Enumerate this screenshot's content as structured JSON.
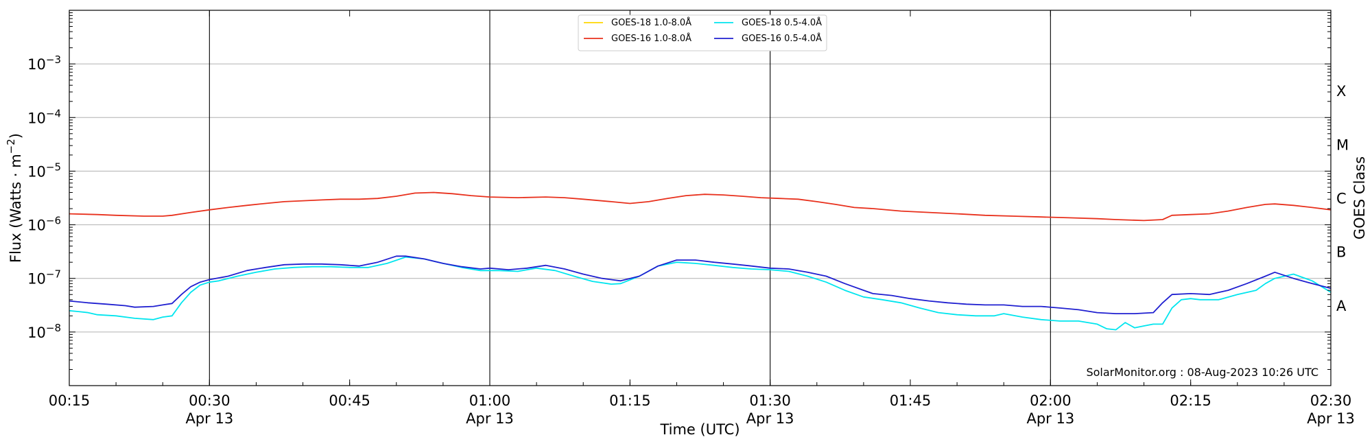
{
  "chart_data": {
    "type": "line",
    "xlabel": "Time (UTC)",
    "ylabel": "Flux (Watts · m⁻²)",
    "y2label": "GOES Class",
    "yscale": "log",
    "ylim": [
      1e-09,
      0.01
    ],
    "xlim": [
      "00:15",
      "02:30"
    ],
    "x_ticks": [
      {
        "t": "00:15",
        "date": ""
      },
      {
        "t": "00:30",
        "date": "Apr 13"
      },
      {
        "t": "00:45",
        "date": ""
      },
      {
        "t": "01:00",
        "date": "Apr 13"
      },
      {
        "t": "01:15",
        "date": ""
      },
      {
        "t": "01:30",
        "date": "Apr 13"
      },
      {
        "t": "01:45",
        "date": ""
      },
      {
        "t": "02:00",
        "date": "Apr 13"
      },
      {
        "t": "02:15",
        "date": ""
      },
      {
        "t": "02:30",
        "date": "Apr 13"
      }
    ],
    "y_ticks": [
      {
        "value": 1e-08,
        "mant": "10",
        "exp": "−8"
      },
      {
        "value": 1e-07,
        "mant": "10",
        "exp": "−7"
      },
      {
        "value": 1e-06,
        "mant": "10",
        "exp": "−6"
      },
      {
        "value": 1e-05,
        "mant": "10",
        "exp": "−5"
      },
      {
        "value": 0.0001,
        "mant": "10",
        "exp": "−4"
      },
      {
        "value": 0.001,
        "mant": "10",
        "exp": "−3"
      }
    ],
    "goes_classes": [
      {
        "label": "A",
        "value": 1e-08
      },
      {
        "label": "B",
        "value": 1e-07
      },
      {
        "label": "C",
        "value": 1e-06
      },
      {
        "label": "M",
        "value": 1e-05
      },
      {
        "label": "X",
        "value": 0.0001
      }
    ],
    "grid": "horizontal at decades, vertical at half-hours",
    "legend_position": "top-center",
    "series": [
      {
        "name": "GOES-18 1.0-8.0Å",
        "color": "#ffd700",
        "t": [],
        "values": []
      },
      {
        "name": "GOES-16 1.0-8.0Å",
        "color": "#e8301c",
        "t": [
          "00:15",
          "00:18",
          "00:20",
          "00:23",
          "00:25",
          "00:26",
          "00:28",
          "00:30",
          "00:32",
          "00:34",
          "00:36",
          "00:38",
          "00:40",
          "00:42",
          "00:44",
          "00:46",
          "00:48",
          "00:50",
          "00:52",
          "00:54",
          "00:56",
          "00:58",
          "01:00",
          "01:03",
          "01:06",
          "01:08",
          "01:10",
          "01:13",
          "01:15",
          "01:17",
          "01:19",
          "01:21",
          "01:23",
          "01:25",
          "01:27",
          "01:29",
          "01:31",
          "01:33",
          "01:35",
          "01:37",
          "01:39",
          "01:41",
          "01:44",
          "01:47",
          "01:50",
          "01:53",
          "01:56",
          "01:59",
          "02:02",
          "02:05",
          "02:07",
          "02:10",
          "02:12",
          "02:13",
          "02:15",
          "02:17",
          "02:19",
          "02:21",
          "02:23",
          "02:24",
          "02:26",
          "02:28",
          "02:30"
        ],
        "values": [
          1.6e-06,
          1.55e-06,
          1.5e-06,
          1.45e-06,
          1.45e-06,
          1.5e-06,
          1.7e-06,
          1.9e-06,
          2.1e-06,
          2.3e-06,
          2.5e-06,
          2.7e-06,
          2.8e-06,
          2.9e-06,
          3e-06,
          3e-06,
          3.1e-06,
          3.4e-06,
          3.9e-06,
          4e-06,
          3.8e-06,
          3.5e-06,
          3.3e-06,
          3.2e-06,
          3.3e-06,
          3.2e-06,
          3e-06,
          2.7e-06,
          2.5e-06,
          2.7e-06,
          3.1e-06,
          3.5e-06,
          3.7e-06,
          3.6e-06,
          3.4e-06,
          3.2e-06,
          3.1e-06,
          3e-06,
          2.7e-06,
          2.4e-06,
          2.1e-06,
          2e-06,
          1.8e-06,
          1.7e-06,
          1.6e-06,
          1.5e-06,
          1.45e-06,
          1.4e-06,
          1.35e-06,
          1.3e-06,
          1.25e-06,
          1.2e-06,
          1.25e-06,
          1.5e-06,
          1.55e-06,
          1.6e-06,
          1.8e-06,
          2.1e-06,
          2.4e-06,
          2.45e-06,
          2.3e-06,
          2.1e-06,
          1.9e-06
        ]
      },
      {
        "name": "GOES-18 0.5-4.0Å",
        "color": "#00e5ee",
        "t": [
          "00:15",
          "00:16",
          "00:17",
          "00:18",
          "00:20",
          "00:22",
          "00:24",
          "00:25",
          "00:26",
          "00:27",
          "00:28",
          "00:29",
          "00:30",
          "00:31",
          "00:33",
          "00:35",
          "00:37",
          "00:39",
          "00:41",
          "00:43",
          "00:45",
          "00:47",
          "00:49",
          "00:51",
          "00:53",
          "00:55",
          "00:57",
          "00:59",
          "01:01",
          "01:03",
          "01:05",
          "01:07",
          "01:09",
          "01:11",
          "01:13",
          "01:14",
          "01:16",
          "01:18",
          "01:20",
          "01:22",
          "01:24",
          "01:26",
          "01:28",
          "01:30",
          "01:32",
          "01:34",
          "01:36",
          "01:38",
          "01:40",
          "01:42",
          "01:44",
          "01:46",
          "01:48",
          "01:50",
          "01:52",
          "01:54",
          "01:55",
          "01:57",
          "01:59",
          "02:01",
          "02:03",
          "02:04",
          "02:05",
          "02:06",
          "02:07",
          "02:08",
          "02:09",
          "02:10",
          "02:11",
          "02:12",
          "02:13",
          "02:14",
          "02:15",
          "02:16",
          "02:18",
          "02:20",
          "02:22",
          "02:23",
          "02:24",
          "02:26",
          "02:28",
          "02:30"
        ],
        "values": [
          2.5e-08,
          2.4e-08,
          2.3e-08,
          2.1e-08,
          2e-08,
          1.8e-08,
          1.7e-08,
          1.9e-08,
          2e-08,
          3.5e-08,
          5.5e-08,
          7.5e-08,
          8.5e-08,
          9e-08,
          1.1e-07,
          1.3e-07,
          1.5e-07,
          1.6e-07,
          1.65e-07,
          1.65e-07,
          1.6e-07,
          1.6e-07,
          1.9e-07,
          2.5e-07,
          2.3e-07,
          1.9e-07,
          1.6e-07,
          1.4e-07,
          1.4e-07,
          1.35e-07,
          1.55e-07,
          1.4e-07,
          1.1e-07,
          8.8e-08,
          7.8e-08,
          8e-08,
          1.1e-07,
          1.7e-07,
          2e-07,
          1.9e-07,
          1.75e-07,
          1.6e-07,
          1.5e-07,
          1.45e-07,
          1.35e-07,
          1.1e-07,
          8.5e-08,
          6e-08,
          4.5e-08,
          4e-08,
          3.5e-08,
          2.8e-08,
          2.3e-08,
          2.1e-08,
          2e-08,
          2e-08,
          2.2e-08,
          1.9e-08,
          1.7e-08,
          1.6e-08,
          1.6e-08,
          1.5e-08,
          1.4e-08,
          1.15e-08,
          1.1e-08,
          1.5e-08,
          1.2e-08,
          1.3e-08,
          1.4e-08,
          1.4e-08,
          2.8e-08,
          4e-08,
          4.2e-08,
          4e-08,
          4e-08,
          5e-08,
          6e-08,
          8e-08,
          1e-07,
          1.2e-07,
          9e-08,
          5.5e-08
        ]
      },
      {
        "name": "GOES-16 0.5-4.0Å",
        "color": "#1f1fd0",
        "t": [
          "00:15",
          "00:17",
          "00:19",
          "00:21",
          "00:22",
          "00:24",
          "00:25",
          "00:26",
          "00:27",
          "00:28",
          "00:29",
          "00:30",
          "00:32",
          "00:34",
          "00:36",
          "00:38",
          "00:40",
          "00:42",
          "00:44",
          "00:46",
          "00:48",
          "00:50",
          "00:51",
          "00:53",
          "00:55",
          "00:57",
          "00:59",
          "01:00",
          "01:02",
          "01:04",
          "01:06",
          "01:08",
          "01:10",
          "01:12",
          "01:14",
          "01:16",
          "01:18",
          "01:20",
          "01:22",
          "01:24",
          "01:26",
          "01:28",
          "01:30",
          "01:32",
          "01:34",
          "01:36",
          "01:38",
          "01:40",
          "01:41",
          "01:43",
          "01:45",
          "01:47",
          "01:49",
          "01:51",
          "01:53",
          "01:55",
          "01:57",
          "01:59",
          "02:01",
          "02:03",
          "02:05",
          "02:07",
          "02:09",
          "02:11",
          "02:12",
          "02:13",
          "02:15",
          "02:17",
          "02:19",
          "02:21",
          "02:23",
          "02:24",
          "02:26",
          "02:28",
          "02:30"
        ],
        "values": [
          3.8e-08,
          3.5e-08,
          3.3e-08,
          3.1e-08,
          2.9e-08,
          3e-08,
          3.2e-08,
          3.4e-08,
          5e-08,
          7e-08,
          8.5e-08,
          9.5e-08,
          1.1e-07,
          1.4e-07,
          1.6e-07,
          1.8e-07,
          1.85e-07,
          1.85e-07,
          1.8e-07,
          1.7e-07,
          2e-07,
          2.6e-07,
          2.6e-07,
          2.3e-07,
          1.9e-07,
          1.65e-07,
          1.5e-07,
          1.55e-07,
          1.45e-07,
          1.55e-07,
          1.75e-07,
          1.5e-07,
          1.2e-07,
          1e-07,
          9e-08,
          1.1e-07,
          1.7e-07,
          2.2e-07,
          2.2e-07,
          2e-07,
          1.85e-07,
          1.7e-07,
          1.55e-07,
          1.5e-07,
          1.3e-07,
          1.1e-07,
          8e-08,
          6e-08,
          5.2e-08,
          4.8e-08,
          4.2e-08,
          3.8e-08,
          3.5e-08,
          3.3e-08,
          3.2e-08,
          3.2e-08,
          3e-08,
          3e-08,
          2.8e-08,
          2.6e-08,
          2.3e-08,
          2.2e-08,
          2.2e-08,
          2.3e-08,
          3.5e-08,
          5e-08,
          5.2e-08,
          5e-08,
          6e-08,
          8e-08,
          1.1e-07,
          1.3e-07,
          1e-07,
          8e-08,
          6.5e-08
        ]
      }
    ],
    "annotation": "SolarMonitor.org : 08-Aug-2023 10:26 UTC"
  }
}
